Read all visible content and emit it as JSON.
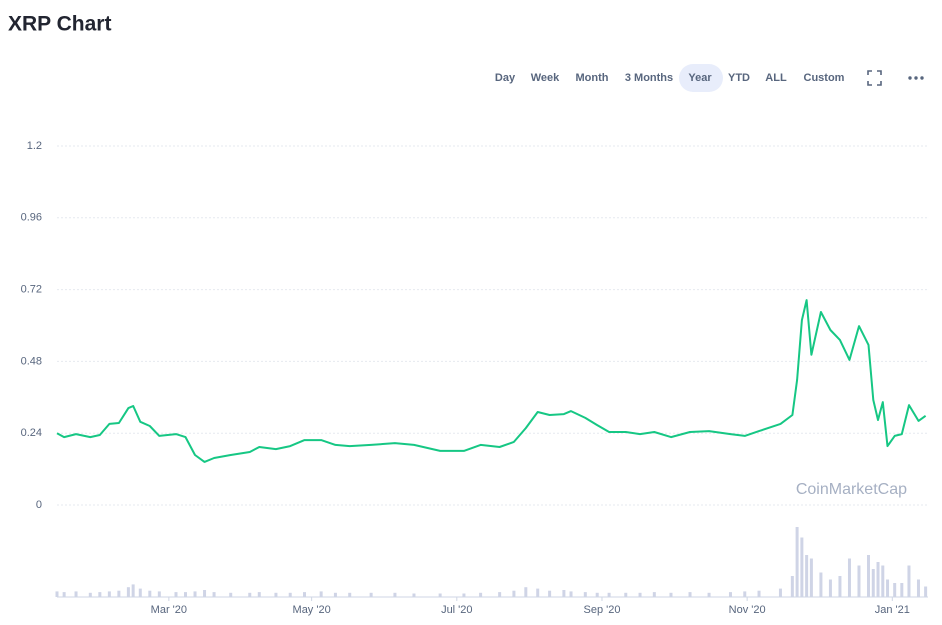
{
  "chart_data": {
    "type": "line",
    "title": "XRP Chart",
    "toolbar": [
      "Day",
      "Week",
      "Month",
      "3 Months",
      "Year",
      "YTD",
      "ALL",
      "Custom"
    ],
    "selected": "Year",
    "watermark": "CoinMarketCap",
    "color": "#16c784",
    "x": [
      0,
      3,
      8,
      14,
      18,
      22,
      26,
      30,
      32,
      35,
      39,
      43,
      50,
      54,
      58,
      62,
      66,
      73,
      81,
      85,
      92,
      98,
      104,
      111,
      117,
      123,
      132,
      142,
      150,
      161,
      171,
      178,
      186,
      192,
      197,
      202,
      207,
      213,
      216,
      222,
      227,
      232,
      239,
      245,
      251,
      258,
      266,
      274,
      283,
      289,
      295,
      304,
      309,
      311,
      313,
      315,
      317,
      321,
      325,
      329,
      333,
      337,
      341,
      343,
      345,
      347,
      349,
      352,
      355,
      358,
      362,
      365
    ],
    "values": [
      0.24,
      0.227,
      0.237,
      0.227,
      0.234,
      0.271,
      0.274,
      0.324,
      0.331,
      0.278,
      0.264,
      0.231,
      0.237,
      0.227,
      0.167,
      0.144,
      0.157,
      0.167,
      0.177,
      0.194,
      0.187,
      0.197,
      0.217,
      0.217,
      0.201,
      0.197,
      0.201,
      0.207,
      0.201,
      0.181,
      0.181,
      0.201,
      0.194,
      0.211,
      0.257,
      0.311,
      0.301,
      0.304,
      0.314,
      0.291,
      0.267,
      0.244,
      0.244,
      0.237,
      0.244,
      0.227,
      0.244,
      0.247,
      0.237,
      0.231,
      0.247,
      0.271,
      0.301,
      0.418,
      0.618,
      0.685,
      0.502,
      0.645,
      0.585,
      0.552,
      0.485,
      0.598,
      0.535,
      0.351,
      0.284,
      0.344,
      0.197,
      0.231,
      0.237,
      0.334,
      0.281,
      0.298
    ],
    "xlim": [
      0,
      366
    ],
    "xticks": [
      {
        "value": 47,
        "label": "Mar '20"
      },
      {
        "value": 107,
        "label": "May '20"
      },
      {
        "value": 168,
        "label": "Jul '20"
      },
      {
        "value": 229,
        "label": "Sep '20"
      },
      {
        "value": 290,
        "label": "Nov '20"
      },
      {
        "value": 351,
        "label": "Jan '21"
      }
    ],
    "ylim": [
      0,
      1.2
    ],
    "yticks": [
      0,
      0.24,
      0.48,
      0.72,
      0.96,
      1.2
    ],
    "grid": true,
    "volume": {
      "color": "#cfd4e6",
      "ylim": [
        0,
        100
      ],
      "values": [
        8,
        7,
        8,
        6,
        7,
        8,
        9,
        14,
        18,
        12,
        9,
        8,
        7,
        7,
        8,
        10,
        7,
        6,
        6,
        7,
        6,
        6,
        7,
        8,
        6,
        6,
        6,
        6,
        5,
        5,
        5,
        6,
        7,
        9,
        14,
        12,
        9,
        10,
        8,
        7,
        6,
        6,
        6,
        6,
        7,
        6,
        7,
        6,
        7,
        8,
        9,
        12,
        30,
        100,
        85,
        60,
        55,
        35,
        25,
        30,
        55,
        45,
        60,
        40,
        50,
        45,
        25,
        20,
        20,
        45,
        25,
        15
      ]
    }
  }
}
